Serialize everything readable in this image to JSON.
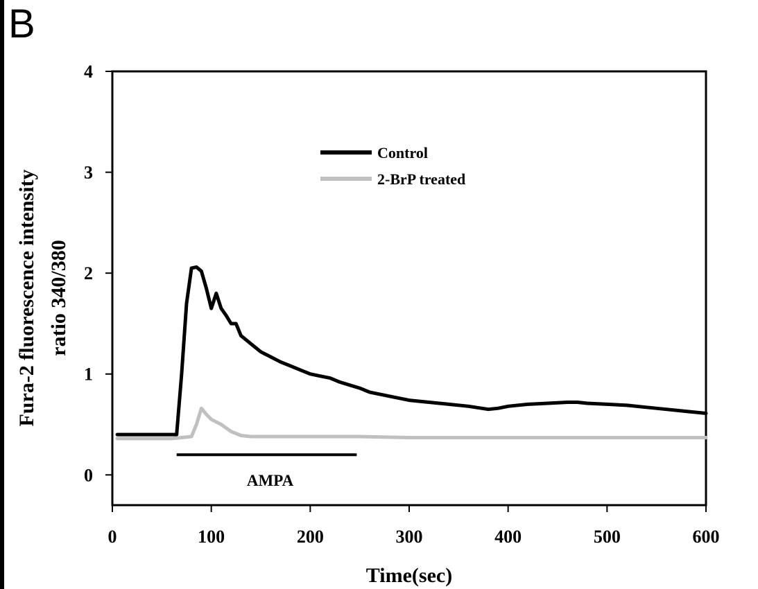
{
  "panel_label": "B",
  "chart_data": {
    "type": "line",
    "title": "",
    "xlabel": "Time(sec)",
    "ylabel_line1": "Fura-2 fluorescence intensity",
    "ylabel_line2": "ratio 340/380",
    "xlim": [
      0,
      600
    ],
    "ylim": [
      -0.3,
      4
    ],
    "x_ticks": [
      0,
      100,
      200,
      300,
      400,
      500,
      600
    ],
    "y_ticks": [
      0,
      1,
      2,
      3,
      4
    ],
    "grid": false,
    "legend_position": "top-center",
    "series": [
      {
        "name": "Control",
        "color": "#000000",
        "x": [
          5,
          20,
          40,
          60,
          65,
          70,
          75,
          80,
          85,
          90,
          95,
          100,
          105,
          110,
          115,
          120,
          125,
          130,
          140,
          150,
          160,
          170,
          180,
          190,
          200,
          210,
          220,
          230,
          240,
          250,
          260,
          280,
          300,
          320,
          340,
          360,
          380,
          390,
          400,
          420,
          440,
          460,
          470,
          480,
          500,
          520,
          540,
          560,
          580,
          600
        ],
        "y": [
          0.4,
          0.4,
          0.4,
          0.4,
          0.4,
          1.0,
          1.7,
          2.05,
          2.06,
          2.02,
          1.85,
          1.65,
          1.8,
          1.65,
          1.58,
          1.5,
          1.5,
          1.38,
          1.3,
          1.22,
          1.17,
          1.12,
          1.08,
          1.04,
          1.0,
          0.98,
          0.96,
          0.92,
          0.89,
          0.86,
          0.82,
          0.78,
          0.74,
          0.72,
          0.7,
          0.68,
          0.65,
          0.66,
          0.68,
          0.7,
          0.71,
          0.72,
          0.72,
          0.71,
          0.7,
          0.69,
          0.67,
          0.65,
          0.63,
          0.61
        ]
      },
      {
        "name": "2-BrP treated",
        "color": "#c0c0c0",
        "x": [
          5,
          20,
          40,
          60,
          70,
          80,
          85,
          90,
          95,
          100,
          110,
          120,
          130,
          140,
          160,
          200,
          250,
          300,
          350,
          400,
          450,
          500,
          550,
          600
        ],
        "y": [
          0.36,
          0.36,
          0.36,
          0.36,
          0.37,
          0.38,
          0.5,
          0.66,
          0.6,
          0.55,
          0.5,
          0.43,
          0.39,
          0.38,
          0.38,
          0.38,
          0.38,
          0.37,
          0.37,
          0.37,
          0.37,
          0.37,
          0.37,
          0.37
        ]
      }
    ],
    "annotations": [
      {
        "label": "AMPA",
        "x_start": 65,
        "x_end": 247,
        "y": 0.2
      }
    ]
  }
}
